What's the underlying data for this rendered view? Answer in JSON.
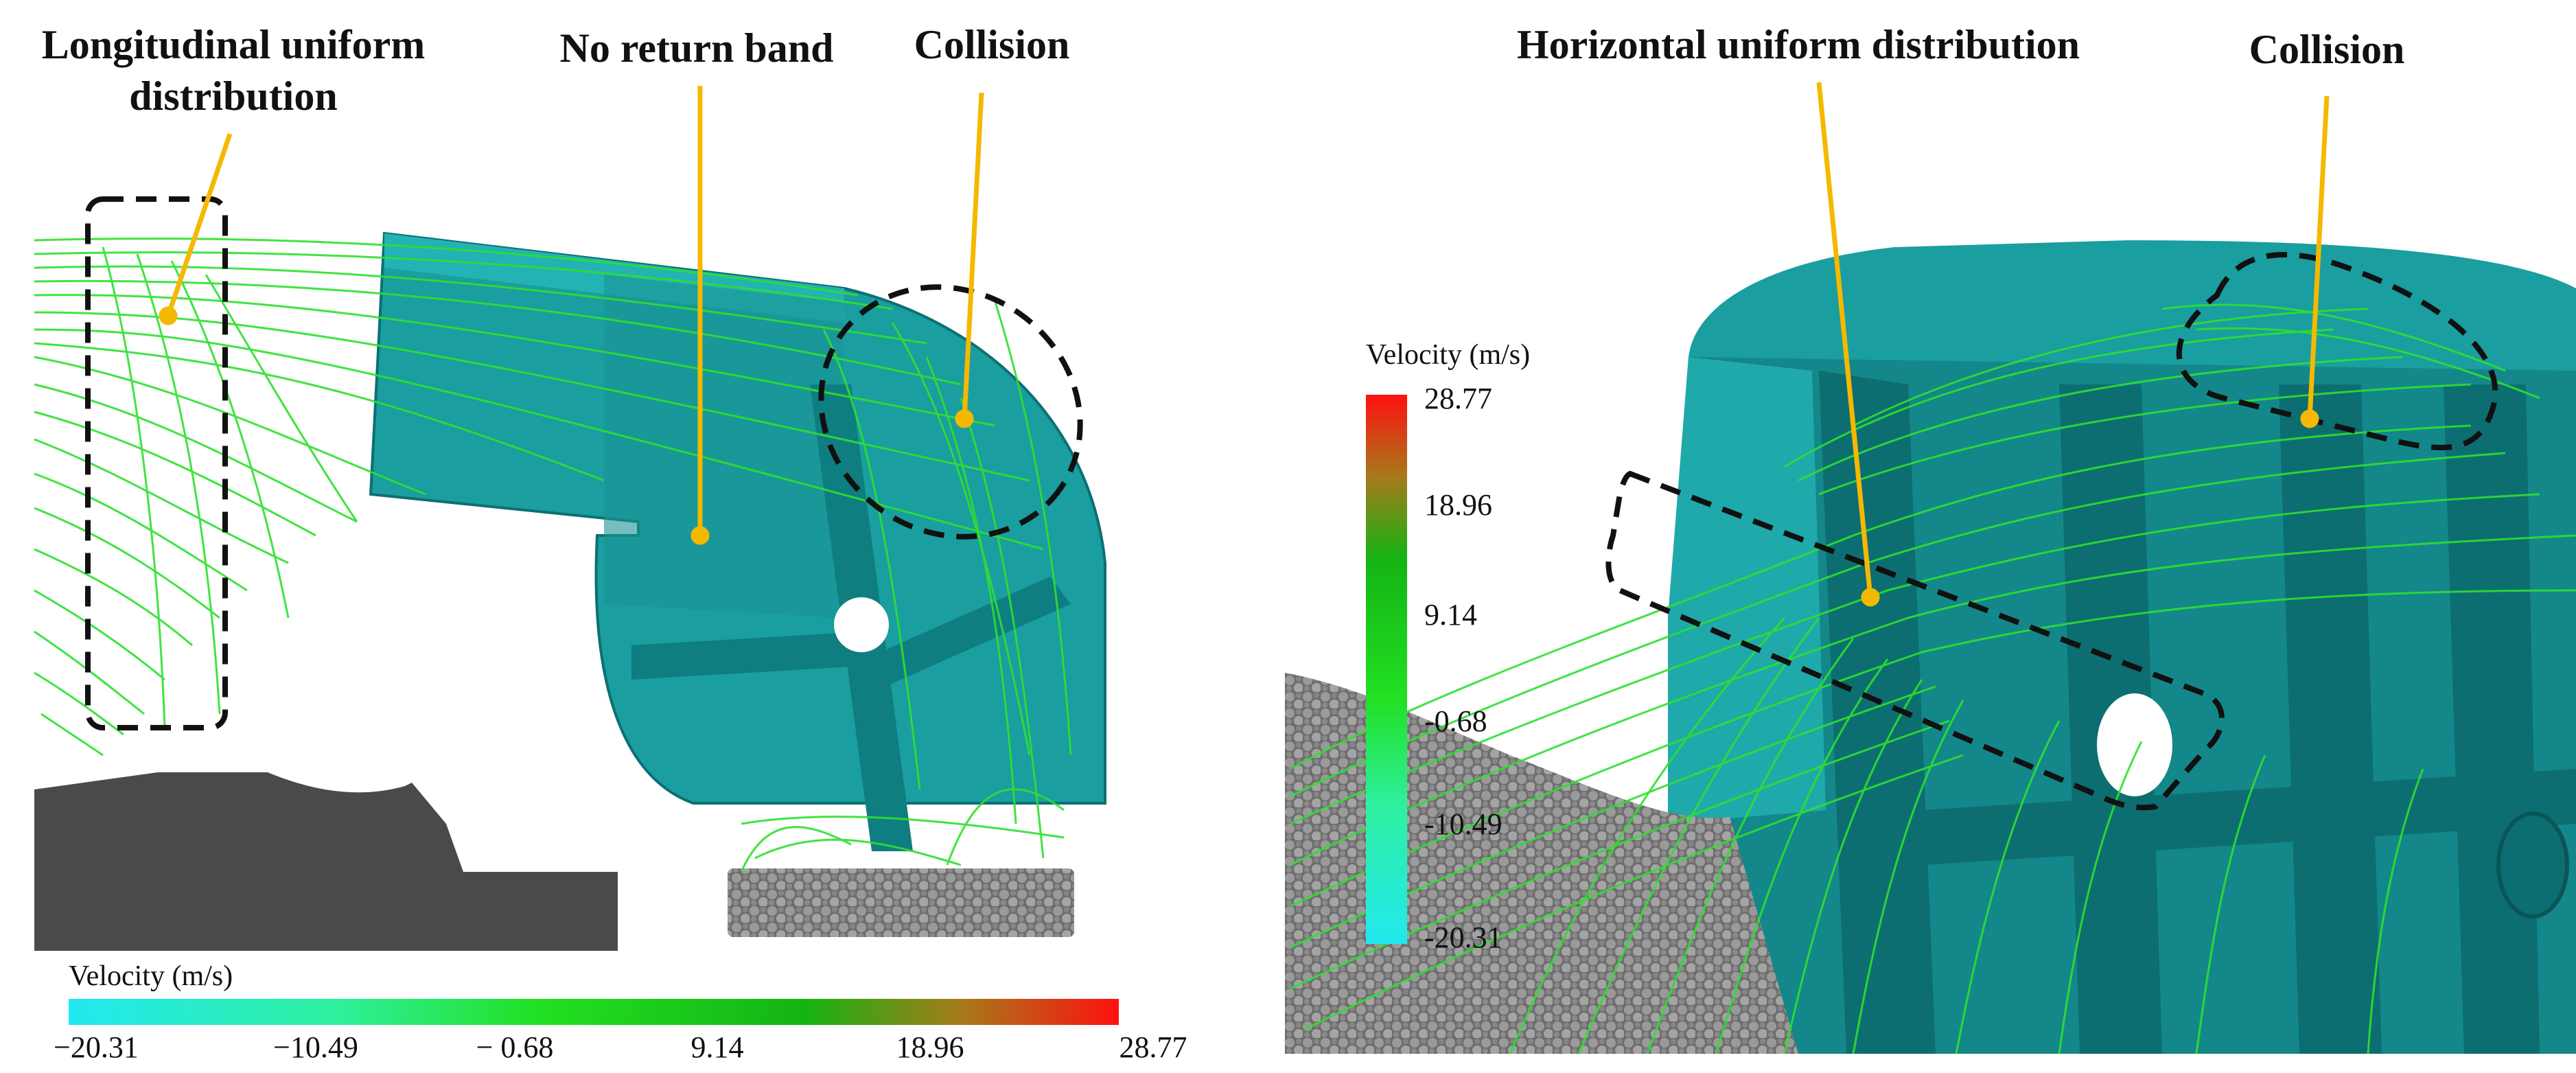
{
  "left_panel": {
    "annotations": {
      "longitudinal_line1": "Longitudinal uniform",
      "longitudinal_line2": "distribution",
      "no_return": "No return band",
      "collision": "Collision"
    },
    "colorbar": {
      "title": "Velocity (m/s)",
      "ticks": [
        "−20.31",
        "−10.49",
        "− 0.68",
        "9.14",
        "18.96",
        "28.77"
      ]
    }
  },
  "right_panel": {
    "annotations": {
      "horizontal": "Horizontal uniform distribution",
      "collision": "Collision"
    },
    "colorbar": {
      "title": "Velocity (m/s)",
      "ticks": [
        "28.77",
        "18.96",
        "9.14",
        "-0.68",
        "-10.49",
        "-20.31"
      ]
    }
  },
  "colors": {
    "annotation_line": "#f5b800",
    "housing": "#1a9ea0",
    "housing_dark": "#0c6e71",
    "streamline": "#2ee02e",
    "ground": "#4a4a4a",
    "particles": "#8e8e8e"
  }
}
